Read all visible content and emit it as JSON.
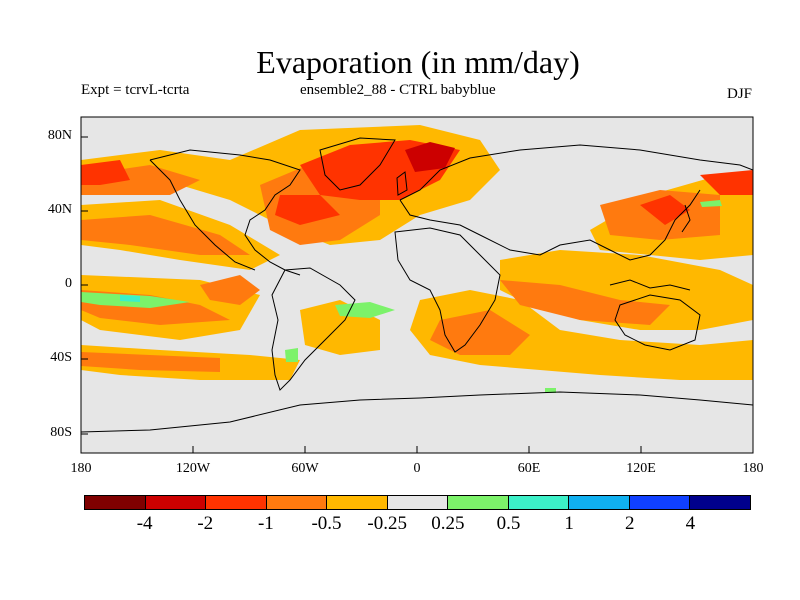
{
  "title": "Evaporation (in mm/day)",
  "subtitle_left": "Expt = tcrvL-tcrta",
  "subtitle_center": "ensemble2_88 - CTRL babyblue",
  "subtitle_right": "DJF",
  "x_ticks": [
    "180",
    "120W",
    "60W",
    "0",
    "60E",
    "120E",
    "180"
  ],
  "y_ticks": [
    "80N",
    "40N",
    "0",
    "40S",
    "80S"
  ],
  "colorbar": {
    "colors": [
      "#7f0000",
      "#cc0000",
      "#ff3300",
      "#ff7a0f",
      "#ffb800",
      "#e6e6e6",
      "#7cf26a",
      "#3cf0c8",
      "#10b0f0",
      "#1040ff",
      "#00008c"
    ],
    "labels": [
      "-4",
      "-2",
      "-1",
      "-0.5",
      "-0.25",
      "0.25",
      "0.5",
      "1",
      "2",
      "4"
    ]
  },
  "map_colors": {
    "background": "#e6e6e6",
    "dark_red": "#cc0000",
    "red": "#ff3300",
    "orange": "#ff7a0f",
    "yellow": "#ffb800",
    "green": "#7cf26a",
    "teal": "#3cf0c8"
  }
}
